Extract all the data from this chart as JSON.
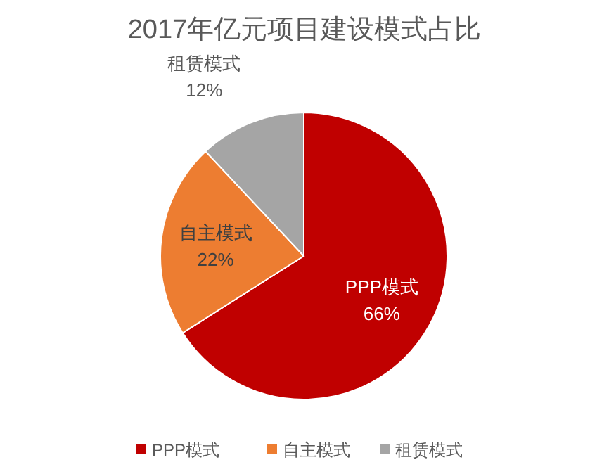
{
  "chart_data": {
    "type": "pie",
    "title": "2017年亿元项目建设模式占比",
    "categories": [
      "PPP模式",
      "自主模式",
      "租赁模式"
    ],
    "values": [
      66,
      22,
      12
    ],
    "colors": [
      "#c00000",
      "#ed7d31",
      "#a5a5a5"
    ],
    "value_labels": [
      "66%",
      "22%",
      "12%"
    ],
    "legend": "bottom"
  }
}
